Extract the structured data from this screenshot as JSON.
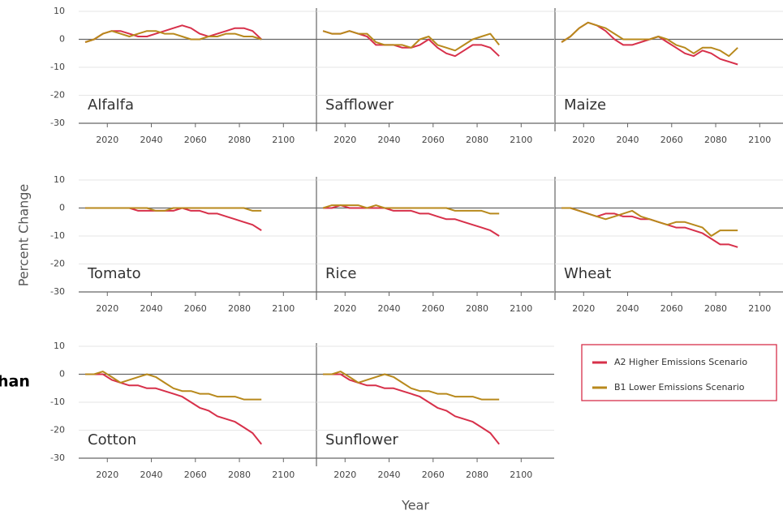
{
  "y_label": "Percent Change",
  "x_label": "Year",
  "side_text": "han",
  "chart_data": [
    {
      "type": "line",
      "title": "Alfalfa",
      "x": [
        2010,
        2014,
        2018,
        2022,
        2026,
        2030,
        2034,
        2038,
        2042,
        2046,
        2050,
        2054,
        2058,
        2062,
        2066,
        2070,
        2074,
        2078,
        2082,
        2086,
        2090
      ],
      "xlim": [
        2007,
        2115
      ],
      "xticks": [
        2020,
        2040,
        2060,
        2080,
        2100
      ],
      "ylim": [
        -30,
        10
      ],
      "yticks": [
        -30,
        -20,
        -10,
        0,
        10
      ],
      "grid": true,
      "series": [
        {
          "name": "A2 Higher Emissions Scenario",
          "color": "#d7304a",
          "values": [
            -1,
            0,
            2,
            3,
            3,
            2,
            1,
            1,
            2,
            3,
            4,
            5,
            4,
            2,
            1,
            2,
            3,
            4,
            4,
            3,
            0
          ]
        },
        {
          "name": "B1 Lower Emissions Scenario",
          "color": "#b8891c",
          "values": [
            -1,
            0,
            2,
            3,
            2,
            1,
            2,
            3,
            3,
            2,
            2,
            1,
            0,
            0,
            1,
            1,
            2,
            2,
            1,
            1,
            0
          ]
        }
      ]
    },
    {
      "type": "line",
      "title": "Safflower",
      "x": [
        2010,
        2014,
        2018,
        2022,
        2026,
        2030,
        2034,
        2038,
        2042,
        2046,
        2050,
        2054,
        2058,
        2062,
        2066,
        2070,
        2074,
        2078,
        2082,
        2086,
        2090
      ],
      "xlim": [
        2007,
        2115
      ],
      "xticks": [
        2020,
        2040,
        2060,
        2080,
        2100
      ],
      "ylim": [
        -30,
        10
      ],
      "yticks": [
        -30,
        -20,
        -10,
        0,
        10
      ],
      "grid": true,
      "series": [
        {
          "name": "A2 Higher Emissions Scenario",
          "color": "#d7304a",
          "values": [
            3,
            2,
            2,
            3,
            2,
            1,
            -2,
            -2,
            -2,
            -3,
            -3,
            -2,
            0,
            -3,
            -5,
            -6,
            -4,
            -2,
            -2,
            -3,
            -6
          ]
        },
        {
          "name": "B1 Lower Emissions Scenario",
          "color": "#b8891c",
          "values": [
            3,
            2,
            2,
            3,
            2,
            2,
            -1,
            -2,
            -2,
            -2,
            -3,
            0,
            1,
            -2,
            -3,
            -4,
            -2,
            0,
            1,
            2,
            -2
          ]
        }
      ]
    },
    {
      "type": "line",
      "title": "Maize",
      "x": [
        2010,
        2014,
        2018,
        2022,
        2026,
        2030,
        2034,
        2038,
        2042,
        2046,
        2050,
        2054,
        2058,
        2062,
        2066,
        2070,
        2074,
        2078,
        2082,
        2086,
        2090
      ],
      "xlim": [
        2007,
        2115
      ],
      "xticks": [
        2020,
        2040,
        2060,
        2080,
        2100
      ],
      "ylim": [
        -30,
        10
      ],
      "yticks": [
        -30,
        -20,
        -10,
        0,
        10
      ],
      "grid": true,
      "series": [
        {
          "name": "A2 Higher Emissions Scenario",
          "color": "#d7304a",
          "values": [
            -1,
            1,
            4,
            6,
            5,
            3,
            0,
            -2,
            -2,
            -1,
            0,
            1,
            -1,
            -3,
            -5,
            -6,
            -4,
            -5,
            -7,
            -8,
            -9
          ]
        },
        {
          "name": "B1 Lower Emissions Scenario",
          "color": "#b8891c",
          "values": [
            -1,
            1,
            4,
            6,
            5,
            4,
            2,
            0,
            0,
            0,
            0,
            1,
            0,
            -2,
            -3,
            -5,
            -3,
            -3,
            -4,
            -6,
            -3
          ]
        }
      ]
    },
    {
      "type": "line",
      "title": "Tomato",
      "x": [
        2010,
        2014,
        2018,
        2022,
        2026,
        2030,
        2034,
        2038,
        2042,
        2046,
        2050,
        2054,
        2058,
        2062,
        2066,
        2070,
        2074,
        2078,
        2082,
        2086,
        2090
      ],
      "xlim": [
        2007,
        2115
      ],
      "xticks": [
        2020,
        2040,
        2060,
        2080,
        2100
      ],
      "ylim": [
        -30,
        10
      ],
      "yticks": [
        -30,
        -20,
        -10,
        0,
        10
      ],
      "grid": true,
      "series": [
        {
          "name": "A2 Higher Emissions Scenario",
          "color": "#d7304a",
          "values": [
            0,
            0,
            0,
            0,
            0,
            0,
            -1,
            -1,
            -1,
            -1,
            -1,
            0,
            -1,
            -1,
            -2,
            -2,
            -3,
            -4,
            -5,
            -6,
            -8
          ]
        },
        {
          "name": "B1 Lower Emissions Scenario",
          "color": "#b8891c",
          "values": [
            0,
            0,
            0,
            0,
            0,
            0,
            0,
            0,
            -1,
            -1,
            0,
            0,
            0,
            0,
            0,
            0,
            0,
            0,
            0,
            -1,
            -1
          ]
        }
      ]
    },
    {
      "type": "line",
      "title": "Rice",
      "x": [
        2010,
        2014,
        2018,
        2022,
        2026,
        2030,
        2034,
        2038,
        2042,
        2046,
        2050,
        2054,
        2058,
        2062,
        2066,
        2070,
        2074,
        2078,
        2082,
        2086,
        2090
      ],
      "xlim": [
        2007,
        2115
      ],
      "xticks": [
        2020,
        2040,
        2060,
        2080,
        2100
      ],
      "ylim": [
        -30,
        10
      ],
      "yticks": [
        -30,
        -20,
        -10,
        0,
        10
      ],
      "grid": true,
      "series": [
        {
          "name": "A2 Higher Emissions Scenario",
          "color": "#d7304a",
          "values": [
            0,
            0,
            1,
            0,
            0,
            0,
            0,
            0,
            -1,
            -1,
            -1,
            -2,
            -2,
            -3,
            -4,
            -4,
            -5,
            -6,
            -7,
            -8,
            -10
          ]
        },
        {
          "name": "B1 Lower Emissions Scenario",
          "color": "#b8891c",
          "values": [
            0,
            1,
            1,
            1,
            1,
            0,
            1,
            0,
            0,
            0,
            0,
            0,
            0,
            0,
            0,
            -1,
            -1,
            -1,
            -1,
            -2,
            -2
          ]
        }
      ]
    },
    {
      "type": "line",
      "title": "Wheat",
      "x": [
        2010,
        2014,
        2018,
        2022,
        2026,
        2030,
        2034,
        2038,
        2042,
        2046,
        2050,
        2054,
        2058,
        2062,
        2066,
        2070,
        2074,
        2078,
        2082,
        2086,
        2090
      ],
      "xlim": [
        2007,
        2115
      ],
      "xticks": [
        2020,
        2040,
        2060,
        2080,
        2100
      ],
      "ylim": [
        -30,
        10
      ],
      "yticks": [
        -30,
        -20,
        -10,
        0,
        10
      ],
      "grid": true,
      "series": [
        {
          "name": "A2 Higher Emissions Scenario",
          "color": "#d7304a",
          "values": [
            0,
            0,
            -1,
            -2,
            -3,
            -2,
            -2,
            -3,
            -3,
            -4,
            -4,
            -5,
            -6,
            -7,
            -7,
            -8,
            -9,
            -11,
            -13,
            -13,
            -14
          ]
        },
        {
          "name": "B1 Lower Emissions Scenario",
          "color": "#b8891c",
          "values": [
            0,
            0,
            -1,
            -2,
            -3,
            -4,
            -3,
            -2,
            -1,
            -3,
            -4,
            -5,
            -6,
            -5,
            -5,
            -6,
            -7,
            -10,
            -8,
            -8,
            -8
          ]
        }
      ]
    },
    {
      "type": "line",
      "title": "Cotton",
      "x": [
        2010,
        2014,
        2018,
        2022,
        2026,
        2030,
        2034,
        2038,
        2042,
        2046,
        2050,
        2054,
        2058,
        2062,
        2066,
        2070,
        2074,
        2078,
        2082,
        2086,
        2090
      ],
      "xlim": [
        2007,
        2115
      ],
      "xticks": [
        2020,
        2040,
        2060,
        2080,
        2100
      ],
      "ylim": [
        -30,
        10
      ],
      "yticks": [
        -30,
        -20,
        -10,
        0,
        10
      ],
      "grid": true,
      "series": [
        {
          "name": "A2 Higher Emissions Scenario",
          "color": "#d7304a",
          "values": [
            0,
            0,
            0,
            -2,
            -3,
            -4,
            -4,
            -5,
            -5,
            -6,
            -7,
            -8,
            -10,
            -12,
            -13,
            -15,
            -16,
            -17,
            -19,
            -21,
            -25
          ]
        },
        {
          "name": "B1 Lower Emissions Scenario",
          "color": "#b8891c",
          "values": [
            0,
            0,
            1,
            -1,
            -3,
            -2,
            -1,
            0,
            -1,
            -3,
            -5,
            -6,
            -6,
            -7,
            -7,
            -8,
            -8,
            -8,
            -9,
            -9,
            -9
          ]
        }
      ]
    },
    {
      "type": "line",
      "title": "Sunflower",
      "x": [
        2010,
        2014,
        2018,
        2022,
        2026,
        2030,
        2034,
        2038,
        2042,
        2046,
        2050,
        2054,
        2058,
        2062,
        2066,
        2070,
        2074,
        2078,
        2082,
        2086,
        2090
      ],
      "xlim": [
        2007,
        2115
      ],
      "xticks": [
        2020,
        2040,
        2060,
        2080,
        2100
      ],
      "ylim": [
        -30,
        10
      ],
      "yticks": [
        -30,
        -20,
        -10,
        0,
        10
      ],
      "grid": true,
      "series": [
        {
          "name": "A2 Higher Emissions Scenario",
          "color": "#d7304a",
          "values": [
            0,
            0,
            0,
            -2,
            -3,
            -4,
            -4,
            -5,
            -5,
            -6,
            -7,
            -8,
            -10,
            -12,
            -13,
            -15,
            -16,
            -17,
            -19,
            -21,
            -25
          ]
        },
        {
          "name": "B1 Lower Emissions Scenario",
          "color": "#b8891c",
          "values": [
            0,
            0,
            1,
            -1,
            -3,
            -2,
            -1,
            0,
            -1,
            -3,
            -5,
            -6,
            -6,
            -7,
            -7,
            -8,
            -8,
            -8,
            -9,
            -9,
            -9
          ]
        }
      ]
    }
  ]
}
